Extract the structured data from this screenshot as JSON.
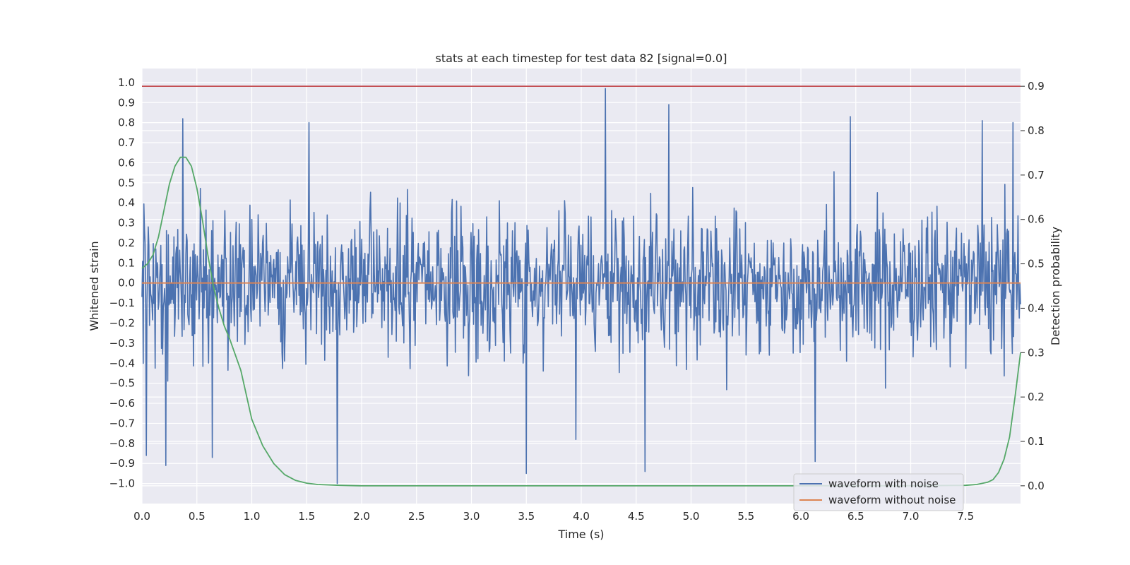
{
  "chart_data": {
    "type": "line",
    "title": "stats at each timestep for test data 82 [signal=0.0]",
    "xlabel": "Time (s)",
    "ylabel": "Whitened strain",
    "y2label": "Detection probability",
    "xlim": [
      0.0,
      8.0
    ],
    "ylim": [
      -1.1,
      1.07
    ],
    "y2lim": [
      -0.04,
      0.94
    ],
    "xticks": [
      0.0,
      0.5,
      1.0,
      1.5,
      2.0,
      2.5,
      3.0,
      3.5,
      4.0,
      4.5,
      5.0,
      5.5,
      6.0,
      6.5,
      7.0,
      7.5
    ],
    "yticks": [
      -1.0,
      -0.9,
      -0.8,
      -0.7,
      -0.6,
      -0.5,
      -0.4,
      -0.3,
      -0.2,
      -0.1,
      0.0,
      0.1,
      0.2,
      0.3,
      0.4,
      0.5,
      0.6,
      0.7,
      0.8,
      0.9,
      1.0
    ],
    "y2ticks": [
      0.0,
      0.1,
      0.2,
      0.3,
      0.4,
      0.5,
      0.6,
      0.7,
      0.8,
      0.9
    ],
    "grid": true,
    "legend_position": "bottom-right",
    "series": [
      {
        "name": "waveform with noise",
        "axis": "left",
        "color": "#4c72b0",
        "noise_amplitude": 0.33,
        "noise_samples": 1400,
        "peaks": [
          {
            "x": 0.37,
            "y": 0.82
          },
          {
            "x": 0.04,
            "y": -0.86
          },
          {
            "x": 0.22,
            "y": -0.91
          },
          {
            "x": 0.64,
            "y": -0.87
          },
          {
            "x": 1.78,
            "y": -1.0
          },
          {
            "x": 3.5,
            "y": -0.95
          },
          {
            "x": 4.22,
            "y": 0.97
          },
          {
            "x": 4.58,
            "y": -0.94
          },
          {
            "x": 4.8,
            "y": 0.89
          },
          {
            "x": 6.45,
            "y": 0.83
          },
          {
            "x": 7.65,
            "y": 0.81
          },
          {
            "x": 7.93,
            "y": 0.8
          },
          {
            "x": 1.52,
            "y": 0.8
          },
          {
            "x": 6.13,
            "y": -0.89
          },
          {
            "x": 3.95,
            "y": -0.78
          }
        ]
      },
      {
        "name": "waveform without noise",
        "axis": "left",
        "color": "#dd8452",
        "x": [
          0.0,
          8.0
        ],
        "y": [
          0.0,
          0.0
        ]
      },
      {
        "name": "",
        "axis": "right",
        "color": "#55a868",
        "x": [
          0.0,
          0.05,
          0.1,
          0.15,
          0.2,
          0.25,
          0.3,
          0.35,
          0.4,
          0.45,
          0.5,
          0.55,
          0.6,
          0.65,
          0.7,
          0.75,
          0.8,
          0.9,
          1.0,
          1.1,
          1.2,
          1.3,
          1.4,
          1.5,
          1.6,
          1.7,
          1.8,
          2.0,
          3.0,
          4.0,
          5.0,
          6.0,
          7.0,
          7.5,
          7.6,
          7.7,
          7.75,
          7.8,
          7.85,
          7.9,
          7.95,
          8.0
        ],
        "y": [
          0.49,
          0.5,
          0.52,
          0.56,
          0.62,
          0.68,
          0.72,
          0.74,
          0.74,
          0.72,
          0.67,
          0.6,
          0.52,
          0.45,
          0.4,
          0.36,
          0.33,
          0.26,
          0.15,
          0.09,
          0.05,
          0.025,
          0.012,
          0.006,
          0.003,
          0.002,
          0.001,
          0.0,
          0.0,
          0.0,
          0.0,
          0.0,
          0.0,
          0.001,
          0.003,
          0.008,
          0.014,
          0.03,
          0.06,
          0.11,
          0.2,
          0.3
        ]
      },
      {
        "name": "",
        "axis": "right",
        "color": "#c44e52",
        "x": [
          0.0,
          8.0
        ],
        "y": [
          0.9,
          0.9
        ]
      }
    ]
  }
}
